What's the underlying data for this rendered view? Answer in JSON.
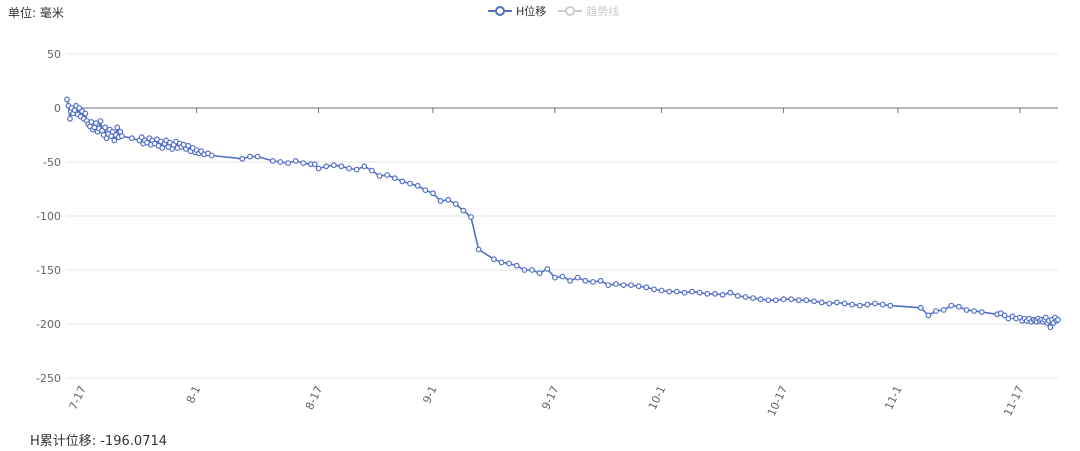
{
  "unit_label": "单位: 毫米",
  "summary": {
    "label": "H累计位移:",
    "value": "-196.0714"
  },
  "legend": [
    {
      "name": "H位移",
      "color": "#5470c6",
      "active": true
    },
    {
      "name": "趋势线",
      "color": "#cccccc",
      "active": false
    }
  ],
  "chart_data": {
    "type": "line",
    "title": "",
    "xlabel": "",
    "ylabel": "单位: 毫米",
    "x_tick_labels": [
      "7-17",
      "8-1",
      "8-17",
      "9-1",
      "9-17",
      "10-1",
      "10-17",
      "11-1",
      "11-17"
    ],
    "x_tick_days": [
      16,
      31,
      47,
      62,
      78,
      92,
      108,
      123,
      139
    ],
    "y_ticks": [
      50,
      0,
      -50,
      -100,
      -150,
      -200,
      -250
    ],
    "ylim": [
      -250,
      50
    ],
    "xlim_days": [
      14,
      142
    ],
    "grid": true,
    "legend_position": "top-center",
    "series": [
      {
        "name": "H位移",
        "color": "#5470c6",
        "x_unit": "day of year (Jul 17 = 16th day after Jul 1 baseline)",
        "points": [
          [
            14.0,
            8
          ],
          [
            14.2,
            2
          ],
          [
            14.4,
            -10
          ],
          [
            14.5,
            -3
          ],
          [
            14.6,
            0
          ],
          [
            14.8,
            -5
          ],
          [
            15.0,
            -2
          ],
          [
            15.2,
            2
          ],
          [
            15.4,
            -6
          ],
          [
            15.6,
            0
          ],
          [
            15.8,
            -8
          ],
          [
            16.0,
            -3
          ],
          [
            16.2,
            -10
          ],
          [
            16.4,
            -5
          ],
          [
            16.6,
            -12
          ],
          [
            16.8,
            -15
          ],
          [
            17.0,
            -17
          ],
          [
            17.2,
            -13
          ],
          [
            17.4,
            -20
          ],
          [
            17.6,
            -18
          ],
          [
            17.8,
            -14
          ],
          [
            18.0,
            -22
          ],
          [
            18.2,
            -19
          ],
          [
            18.4,
            -12
          ],
          [
            18.6,
            -21
          ],
          [
            18.8,
            -25
          ],
          [
            19.0,
            -18
          ],
          [
            19.2,
            -28
          ],
          [
            19.4,
            -24
          ],
          [
            19.6,
            -20
          ],
          [
            19.8,
            -26
          ],
          [
            20.0,
            -22
          ],
          [
            20.2,
            -30
          ],
          [
            20.4,
            -25
          ],
          [
            20.6,
            -18
          ],
          [
            20.8,
            -27
          ],
          [
            21.0,
            -22
          ],
          [
            21.2,
            -26
          ],
          [
            22.5,
            -28
          ],
          [
            23.5,
            -30
          ],
          [
            23.8,
            -27
          ],
          [
            24.0,
            -33
          ],
          [
            24.2,
            -30
          ],
          [
            24.5,
            -32
          ],
          [
            24.8,
            -28
          ],
          [
            25.0,
            -34
          ],
          [
            25.2,
            -30
          ],
          [
            25.5,
            -33
          ],
          [
            25.8,
            -29
          ],
          [
            26.0,
            -35
          ],
          [
            26.3,
            -31
          ],
          [
            26.5,
            -37
          ],
          [
            26.8,
            -33
          ],
          [
            27.0,
            -30
          ],
          [
            27.3,
            -36
          ],
          [
            27.5,
            -32
          ],
          [
            27.8,
            -38
          ],
          [
            28.0,
            -34
          ],
          [
            28.3,
            -31
          ],
          [
            28.5,
            -37
          ],
          [
            28.8,
            -33
          ],
          [
            29.0,
            -36
          ],
          [
            29.3,
            -34
          ],
          [
            29.6,
            -38
          ],
          [
            29.9,
            -35
          ],
          [
            30.2,
            -40
          ],
          [
            30.5,
            -37
          ],
          [
            30.8,
            -41
          ],
          [
            31.0,
            -39
          ],
          [
            31.3,
            -42
          ],
          [
            31.6,
            -40
          ],
          [
            32.0,
            -43
          ],
          [
            32.5,
            -42
          ],
          [
            33.0,
            -44
          ],
          [
            37.0,
            -47
          ],
          [
            38.0,
            -45
          ],
          [
            39.0,
            -45
          ],
          [
            41.0,
            -49
          ],
          [
            42.0,
            -50
          ],
          [
            43.0,
            -51
          ],
          [
            44.0,
            -49
          ],
          [
            45.0,
            -51
          ],
          [
            46.0,
            -52
          ],
          [
            46.5,
            -52
          ],
          [
            47.0,
            -56
          ],
          [
            48.0,
            -54
          ],
          [
            49.0,
            -53
          ],
          [
            50.0,
            -54
          ],
          [
            51.0,
            -56
          ],
          [
            52.0,
            -57
          ],
          [
            53.0,
            -54
          ],
          [
            54.0,
            -58
          ],
          [
            55.0,
            -63
          ],
          [
            56.0,
            -62
          ],
          [
            57.0,
            -65
          ],
          [
            58.0,
            -68
          ],
          [
            59.0,
            -70
          ],
          [
            60.0,
            -72
          ],
          [
            61.0,
            -76
          ],
          [
            62.0,
            -79
          ],
          [
            63.0,
            -86
          ],
          [
            64.0,
            -85
          ],
          [
            65.0,
            -89
          ],
          [
            66.0,
            -95
          ],
          [
            67.0,
            -101
          ],
          [
            68.0,
            -131
          ],
          [
            70.0,
            -140
          ],
          [
            71.0,
            -143
          ],
          [
            72.0,
            -144
          ],
          [
            73.0,
            -146
          ],
          [
            74.0,
            -150
          ],
          [
            75.0,
            -150
          ],
          [
            76.0,
            -153
          ],
          [
            77.0,
            -149
          ],
          [
            78.0,
            -157
          ],
          [
            79.0,
            -156
          ],
          [
            80.0,
            -160
          ],
          [
            81.0,
            -157
          ],
          [
            82.0,
            -160
          ],
          [
            83.0,
            -161
          ],
          [
            84.0,
            -160
          ],
          [
            85.0,
            -164
          ],
          [
            86.0,
            -163
          ],
          [
            87.0,
            -164
          ],
          [
            88.0,
            -164
          ],
          [
            89.0,
            -165
          ],
          [
            90.0,
            -166
          ],
          [
            91.0,
            -168
          ],
          [
            92.0,
            -169
          ],
          [
            93.0,
            -170
          ],
          [
            94.0,
            -170
          ],
          [
            95.0,
            -171
          ],
          [
            96.0,
            -170
          ],
          [
            97.0,
            -171
          ],
          [
            98.0,
            -172
          ],
          [
            99.0,
            -172
          ],
          [
            100.0,
            -173
          ],
          [
            101.0,
            -171
          ],
          [
            102.0,
            -174
          ],
          [
            103.0,
            -175
          ],
          [
            104.0,
            -176
          ],
          [
            105.0,
            -177
          ],
          [
            106.0,
            -178
          ],
          [
            107.0,
            -178
          ],
          [
            108.0,
            -177
          ],
          [
            109.0,
            -177
          ],
          [
            110.0,
            -178
          ],
          [
            111.0,
            -178
          ],
          [
            112.0,
            -179
          ],
          [
            113.0,
            -180
          ],
          [
            114.0,
            -181
          ],
          [
            115.0,
            -180
          ],
          [
            116.0,
            -181
          ],
          [
            117.0,
            -182
          ],
          [
            118.0,
            -183
          ],
          [
            119.0,
            -182
          ],
          [
            120.0,
            -181
          ],
          [
            121.0,
            -182
          ],
          [
            122.0,
            -183
          ],
          [
            126.0,
            -185
          ],
          [
            127.0,
            -192
          ],
          [
            128.0,
            -188
          ],
          [
            129.0,
            -187
          ],
          [
            130.0,
            -183
          ],
          [
            131.0,
            -184
          ],
          [
            132.0,
            -187
          ],
          [
            133.0,
            -188
          ],
          [
            134.0,
            -189
          ],
          [
            136.0,
            -191
          ],
          [
            136.5,
            -190
          ],
          [
            137.0,
            -192
          ],
          [
            137.5,
            -195
          ],
          [
            138.0,
            -193
          ],
          [
            138.5,
            -195
          ],
          [
            139.0,
            -194
          ],
          [
            139.3,
            -197
          ],
          [
            139.6,
            -195
          ],
          [
            139.9,
            -197
          ],
          [
            140.2,
            -195
          ],
          [
            140.5,
            -198
          ],
          [
            140.8,
            -196
          ],
          [
            141.0,
            -197
          ],
          [
            141.2,
            -198
          ],
          [
            141.4,
            -195
          ],
          [
            141.6,
            -197
          ],
          [
            141.8,
            -196
          ],
          [
            142.0,
            -198
          ],
          [
            142.2,
            -196
          ],
          [
            142.4,
            -194
          ],
          [
            142.6,
            -199
          ],
          [
            142.8,
            -197
          ],
          [
            143.0,
            -203
          ],
          [
            143.2,
            -196
          ],
          [
            143.4,
            -199
          ],
          [
            143.6,
            -194
          ],
          [
            143.8,
            -197
          ],
          [
            144.0,
            -196
          ]
        ]
      }
    ]
  }
}
